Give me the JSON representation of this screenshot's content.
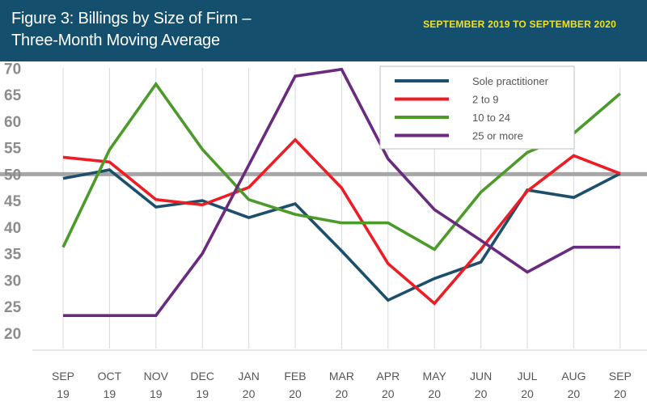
{
  "header": {
    "title": "Figure 3: Billings by Size of Firm – Three-Month Moving Average",
    "date_range": "SEPTEMBER 2019 TO SEPTEMBER 2020",
    "background_color": "#144f6e",
    "date_color": "#f2e21b"
  },
  "chart_data": {
    "type": "line",
    "title": "Figure 3: Billings by Size of Firm – Three-Month Moving Average",
    "categories": [
      [
        "SEP",
        "19"
      ],
      [
        "OCT",
        "19"
      ],
      [
        "NOV",
        "19"
      ],
      [
        "DEC",
        "19"
      ],
      [
        "JAN",
        "20"
      ],
      [
        "FEB",
        "20"
      ],
      [
        "MAR",
        "20"
      ],
      [
        "APR",
        "20"
      ],
      [
        "MAY",
        "20"
      ],
      [
        "JUN",
        "20"
      ],
      [
        "JUL",
        "20"
      ],
      [
        "AUG",
        "20"
      ],
      [
        "SEP",
        "20"
      ]
    ],
    "yticks": [
      20,
      25,
      30,
      35,
      40,
      45,
      50,
      55,
      60,
      65,
      70
    ],
    "ylim": [
      17,
      72
    ],
    "reference_line": 50,
    "grid": "vertical",
    "legend_position": "top-right",
    "series": [
      {
        "name": "Sole practitioner",
        "color": "#1b4f6b",
        "values": [
          49.2,
          50.8,
          43.8,
          45,
          41.8,
          44.4,
          35.5,
          26.2,
          30.3,
          33.4,
          47,
          45.6,
          50.1
        ]
      },
      {
        "name": "2 to 9",
        "color": "#ee1c24",
        "values": [
          53.2,
          52.3,
          45.2,
          44.2,
          47.5,
          56.5,
          47.4,
          33.1,
          25.6,
          35.8,
          46.8,
          53.5,
          50.1
        ]
      },
      {
        "name": "10 to 24",
        "color": "#4c9a2a",
        "values": [
          36.2,
          54.6,
          67,
          54.7,
          45.2,
          42.4,
          40.8,
          40.8,
          35.8,
          46.6,
          54.1,
          57.7,
          65.2
        ]
      },
      {
        "name": "25 or more",
        "color": "#6a2a7e",
        "values": [
          23.3,
          23.3,
          23.3,
          35,
          51.7,
          68.5,
          69.8,
          52.9,
          43.3,
          37.5,
          31.5,
          36.2,
          36.2
        ]
      }
    ]
  }
}
